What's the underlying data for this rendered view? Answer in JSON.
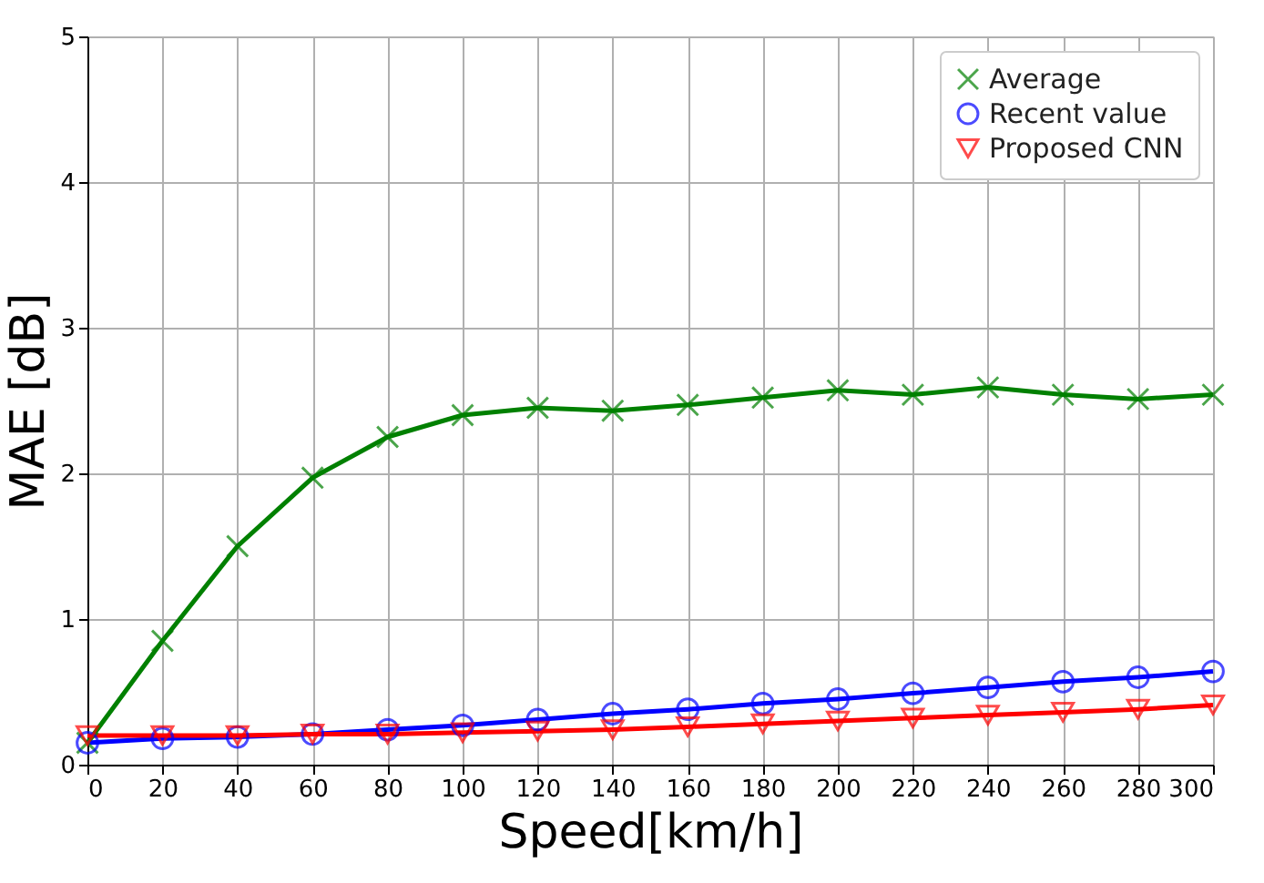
{
  "chart_data": {
    "type": "line",
    "xlabel": "Speed[km/h]",
    "ylabel": "MAE [dB]",
    "x": [
      0,
      20,
      40,
      60,
      80,
      100,
      120,
      140,
      160,
      180,
      200,
      220,
      240,
      260,
      280,
      300
    ],
    "series": [
      {
        "name": "Average",
        "color": "#008000",
        "marker": "cross",
        "values": [
          0.15,
          0.85,
          1.5,
          1.97,
          2.25,
          2.4,
          2.45,
          2.43,
          2.47,
          2.52,
          2.57,
          2.54,
          2.59,
          2.54,
          2.51,
          2.54
        ]
      },
      {
        "name": "Recent value",
        "color": "#0000ff",
        "marker": "circle",
        "values": [
          0.15,
          0.18,
          0.19,
          0.21,
          0.24,
          0.27,
          0.31,
          0.35,
          0.38,
          0.42,
          0.45,
          0.49,
          0.53,
          0.57,
          0.6,
          0.64
        ]
      },
      {
        "name": "Proposed CNN",
        "color": "#ff0000",
        "marker": "triangle",
        "values": [
          0.2,
          0.2,
          0.2,
          0.21,
          0.21,
          0.22,
          0.23,
          0.24,
          0.26,
          0.28,
          0.3,
          0.32,
          0.34,
          0.36,
          0.38,
          0.41
        ]
      }
    ],
    "xlim": [
      0,
      300
    ],
    "xticks": [
      0,
      20,
      40,
      60,
      80,
      100,
      120,
      140,
      160,
      180,
      200,
      220,
      240,
      260,
      280,
      300
    ],
    "ylim": [
      0,
      5
    ],
    "yticks": [
      0,
      1,
      2,
      3,
      4,
      5
    ],
    "grid": true,
    "legend": "top right",
    "line_style": "solid"
  }
}
